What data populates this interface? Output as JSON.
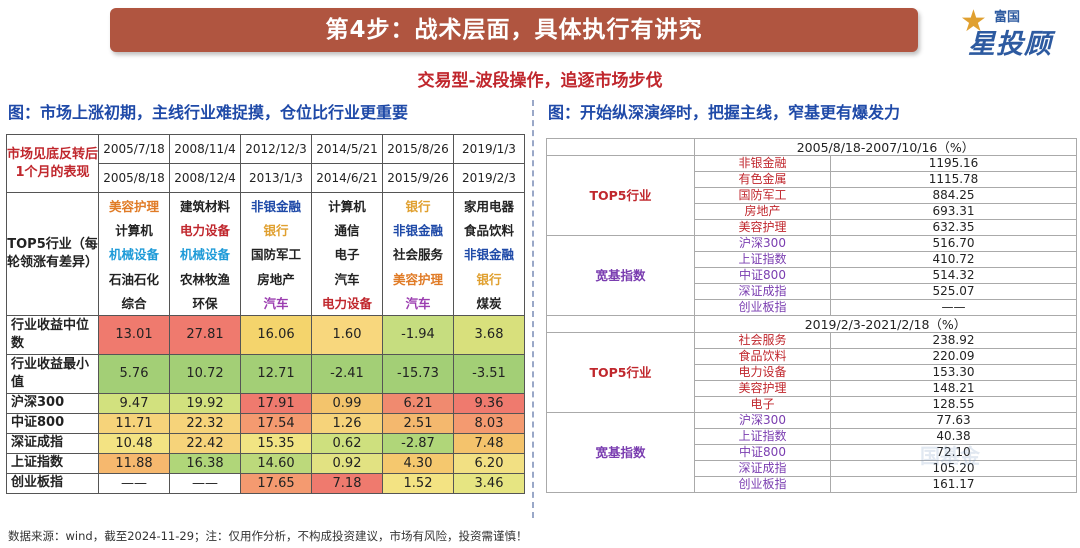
{
  "header": {
    "title": "第4步：战术层面，具体执行有讲究"
  },
  "logo": {
    "small": "富国",
    "big": "星投顾"
  },
  "subtitle": "交易型-波段操作，追逐市场步伐",
  "left": {
    "title": "图：市场上涨初期，主线行业难捉摸，仓位比行业更重要",
    "header_label": "市场见底反转后1个月的表现",
    "start_dates": [
      "2005/7/18",
      "2008/11/4",
      "2012/12/3",
      "2014/5/21",
      "2015/8/26",
      "2019/1/3"
    ],
    "end_dates": [
      "2005/8/18",
      "2008/12/4",
      "2013/1/3",
      "2014/6/21",
      "2015/9/26",
      "2019/2/3"
    ],
    "top5_label": "TOP5行业（每轮领涨有差异）",
    "top5_rows": [
      [
        {
          "t": "美容护理",
          "c": "#e07b26"
        },
        {
          "t": "建筑材料",
          "c": "#222222"
        },
        {
          "t": "非银金融",
          "c": "#1f4aa8"
        },
        {
          "t": "计算机",
          "c": "#222222"
        },
        {
          "t": "银行",
          "c": "#e0a030"
        },
        {
          "t": "家用电器",
          "c": "#222222"
        }
      ],
      [
        {
          "t": "计算机",
          "c": "#222222"
        },
        {
          "t": "电力设备",
          "c": "#c0272d"
        },
        {
          "t": "银行",
          "c": "#e0a030"
        },
        {
          "t": "通信",
          "c": "#222222"
        },
        {
          "t": "非银金融",
          "c": "#1f4aa8"
        },
        {
          "t": "食品饮料",
          "c": "#222222"
        }
      ],
      [
        {
          "t": "机械设备",
          "c": "#1f9bd8"
        },
        {
          "t": "机械设备",
          "c": "#1f9bd8"
        },
        {
          "t": "国防军工",
          "c": "#222222"
        },
        {
          "t": "电子",
          "c": "#222222"
        },
        {
          "t": "社会服务",
          "c": "#222222"
        },
        {
          "t": "非银金融",
          "c": "#1f4aa8"
        }
      ],
      [
        {
          "t": "石油石化",
          "c": "#222222"
        },
        {
          "t": "农林牧渔",
          "c": "#222222"
        },
        {
          "t": "房地产",
          "c": "#222222"
        },
        {
          "t": "汽车",
          "c": "#222222"
        },
        {
          "t": "美容护理",
          "c": "#e07b26"
        },
        {
          "t": "银行",
          "c": "#e0a030"
        }
      ],
      [
        {
          "t": "综合",
          "c": "#222222"
        },
        {
          "t": "环保",
          "c": "#222222"
        },
        {
          "t": "汽车",
          "c": "#9b3db0"
        },
        {
          "t": "电力设备",
          "c": "#c0272d"
        },
        {
          "t": "汽车",
          "c": "#9b3db0"
        },
        {
          "t": "煤炭",
          "c": "#222222"
        }
      ]
    ],
    "stat_rows": [
      {
        "label": "行业收益中位数",
        "cells": [
          {
            "t": "13.01",
            "bg": "#ef7a6e"
          },
          {
            "t": "27.81",
            "bg": "#ef7a6e"
          },
          {
            "t": "16.06",
            "bg": "#f4d46c"
          },
          {
            "t": "1.60",
            "bg": "#f8d77d"
          },
          {
            "t": "-1.94",
            "bg": "#c6dd7f"
          },
          {
            "t": "3.68",
            "bg": "#d8e07c"
          }
        ]
      },
      {
        "label": "行业收益最小值",
        "cells": [
          {
            "t": "5.76",
            "bg": "#a3cf76"
          },
          {
            "t": "10.72",
            "bg": "#a3cf76"
          },
          {
            "t": "12.71",
            "bg": "#a3cf76"
          },
          {
            "t": "-2.41",
            "bg": "#a3cf76"
          },
          {
            "t": "-15.73",
            "bg": "#a3cf76"
          },
          {
            "t": "-3.51",
            "bg": "#a3cf76"
          }
        ]
      },
      {
        "label": "沪深300",
        "cells": [
          {
            "t": "9.47",
            "bg": "#d2e17e"
          },
          {
            "t": "19.92",
            "bg": "#d2e17e"
          },
          {
            "t": "17.91",
            "bg": "#ef7a6e"
          },
          {
            "t": "0.99",
            "bg": "#f3c46c"
          },
          {
            "t": "6.21",
            "bg": "#f08a6f"
          },
          {
            "t": "9.36",
            "bg": "#ef7a6e"
          }
        ]
      },
      {
        "label": "中证800",
        "cells": [
          {
            "t": "11.71",
            "bg": "#f6d37a"
          },
          {
            "t": "22.32",
            "bg": "#f6d37a"
          },
          {
            "t": "17.54",
            "bg": "#f49a70"
          },
          {
            "t": "1.26",
            "bg": "#f6d37a"
          },
          {
            "t": "2.51",
            "bg": "#f4b86e"
          },
          {
            "t": "8.03",
            "bg": "#f49a70"
          }
        ]
      },
      {
        "label": "深证成指",
        "cells": [
          {
            "t": "10.48",
            "bg": "#f3e383"
          },
          {
            "t": "22.42",
            "bg": "#f6d37a"
          },
          {
            "t": "15.35",
            "bg": "#f1e483"
          },
          {
            "t": "0.62",
            "bg": "#cee07e"
          },
          {
            "t": "-2.87",
            "bg": "#b0d679"
          },
          {
            "t": "7.48",
            "bg": "#f4c36c"
          }
        ]
      },
      {
        "label": "上证指数",
        "cells": [
          {
            "t": "11.88",
            "bg": "#f6b86e"
          },
          {
            "t": "16.38",
            "bg": "#b0d679"
          },
          {
            "t": "14.60",
            "bg": "#bcd97b"
          },
          {
            "t": "0.92",
            "bg": "#e2e282"
          },
          {
            "t": "4.30",
            "bg": "#f5c86e"
          },
          {
            "t": "6.20",
            "bg": "#f2e083"
          }
        ]
      },
      {
        "label": "创业板指",
        "cells": [
          {
            "t": "——",
            "bg": "#ffffff"
          },
          {
            "t": "——",
            "bg": "#ffffff"
          },
          {
            "t": "17.65",
            "bg": "#f49a70"
          },
          {
            "t": "7.18",
            "bg": "#ef7a6e"
          },
          {
            "t": "1.52",
            "bg": "#f3e383"
          },
          {
            "t": "3.46",
            "bg": "#e6e582"
          }
        ]
      }
    ]
  },
  "right": {
    "title": "图：开始纵深演绎时，把握主线，窄基更有爆发力",
    "blocks": [
      {
        "period": "2005/8/18-2007/10/16（%）",
        "groups": [
          {
            "label": "TOP5行业",
            "label_color": "#c0272d",
            "band_bg": "#ffffff",
            "rows": [
              {
                "n": "非银金融",
                "v": "1195.16",
                "c": "#c0272d"
              },
              {
                "n": "有色金属",
                "v": "1115.78",
                "c": "#c0272d"
              },
              {
                "n": "国防军工",
                "v": "884.25",
                "c": "#c0272d"
              },
              {
                "n": "房地产",
                "v": "693.31",
                "c": "#c0272d"
              },
              {
                "n": "美容护理",
                "v": "632.35",
                "c": "#c0272d"
              }
            ]
          },
          {
            "label": "宽基指数",
            "label_color": "#7a3db0",
            "band_bg": "#ffffff",
            "rows": [
              {
                "n": "沪深300",
                "v": "516.70",
                "c": "#7a3db0"
              },
              {
                "n": "上证指数",
                "v": "410.72",
                "c": "#7a3db0"
              },
              {
                "n": "中证800",
                "v": "514.32",
                "c": "#7a3db0"
              },
              {
                "n": "深证成指",
                "v": "525.07",
                "c": "#7a3db0"
              },
              {
                "n": "创业板指",
                "v": "——",
                "c": "#7a3db0"
              }
            ]
          }
        ]
      },
      {
        "period": "2019/2/3-2021/2/18（%）",
        "groups": [
          {
            "label": "TOP5行业",
            "label_color": "#c0272d",
            "band_bg": "#ffffff",
            "rows": [
              {
                "n": "社会服务",
                "v": "238.92",
                "c": "#c0272d"
              },
              {
                "n": "食品饮料",
                "v": "220.09",
                "c": "#c0272d"
              },
              {
                "n": "电力设备",
                "v": "153.30",
                "c": "#c0272d"
              },
              {
                "n": "美容护理",
                "v": "148.21",
                "c": "#c0272d"
              },
              {
                "n": "电子",
                "v": "128.55",
                "c": "#c0272d"
              }
            ]
          },
          {
            "label": "宽基指数",
            "label_color": "#7a3db0",
            "band_bg": "#ffffff",
            "rows": [
              {
                "n": "沪深300",
                "v": "77.63",
                "c": "#7a3db0"
              },
              {
                "n": "上证指数",
                "v": "40.38",
                "c": "#7a3db0"
              },
              {
                "n": "中证800",
                "v": "72.10",
                "c": "#7a3db0"
              },
              {
                "n": "深证成指",
                "v": "105.20",
                "c": "#7a3db0"
              },
              {
                "n": "创业板指",
                "v": "161.17",
                "c": "#7a3db0"
              }
            ]
          }
        ]
      }
    ]
  },
  "footer": "数据来源：wind，截至2024-11-29；注：仅用作分析，不构成投资建议，市场有风险，投资需谨慎！"
}
